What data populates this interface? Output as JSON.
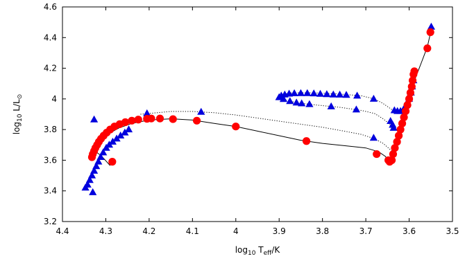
{
  "chart_data": {
    "type": "scatter",
    "xlabel": {
      "prefix": "log",
      "sub1": "10",
      "mid": " T",
      "sub2": "eff",
      "suffix": "/K"
    },
    "ylabel": {
      "prefix": "log",
      "sub1": "10",
      "mid": " L/L",
      "sub2": "⊙",
      "suffix": ""
    },
    "xlim": [
      4.4,
      3.5
    ],
    "ylim": [
      3.2,
      4.6
    ],
    "xticks": [
      4.4,
      4.3,
      4.2,
      4.1,
      4,
      3.9,
      3.8,
      3.7,
      3.6,
      3.5
    ],
    "xtick_labels": [
      "4.4",
      "4.3",
      "4.2",
      "4.1",
      "4",
      "3.9",
      "3.8",
      "3.7",
      "3.6",
      "3.5"
    ],
    "yticks": [
      3.2,
      3.4,
      3.6,
      3.8,
      4.0,
      4.2,
      4.4,
      4.6
    ],
    "ytick_labels": [
      "3.2",
      "3.4",
      "3.6",
      "3.8",
      "4",
      "4.2",
      "4.4",
      "4.6"
    ],
    "colors": {
      "red": "#ff0000",
      "blue": "#0000dd",
      "line": "#000000"
    },
    "series": [
      {
        "marker": "circle",
        "color": "#ff0000",
        "points": [
          [
            4.285,
            3.59
          ],
          [
            4.332,
            3.62
          ],
          [
            4.33,
            3.64
          ],
          [
            4.327,
            3.66
          ],
          [
            4.324,
            3.68
          ],
          [
            4.32,
            3.7
          ],
          [
            4.316,
            3.72
          ],
          [
            4.311,
            3.74
          ],
          [
            4.305,
            3.76
          ],
          [
            4.298,
            3.78
          ],
          [
            4.29,
            3.8
          ],
          [
            4.28,
            3.82
          ],
          [
            4.268,
            3.835
          ],
          [
            4.255,
            3.848
          ],
          [
            4.24,
            3.858
          ],
          [
            4.225,
            3.865
          ],
          [
            4.205,
            3.87
          ],
          [
            4.195,
            3.872
          ],
          [
            4.175,
            3.872
          ],
          [
            4.145,
            3.868
          ],
          [
            4.09,
            3.858
          ],
          [
            4.0,
            3.82
          ],
          [
            3.837,
            3.725
          ],
          [
            3.675,
            3.64
          ],
          [
            3.648,
            3.6
          ],
          [
            3.645,
            3.59
          ],
          [
            3.64,
            3.6
          ],
          [
            3.637,
            3.64
          ],
          [
            3.633,
            3.68
          ],
          [
            3.628,
            3.72
          ],
          [
            3.624,
            3.76
          ],
          [
            3.62,
            3.8
          ],
          [
            3.616,
            3.84
          ],
          [
            3.612,
            3.88
          ],
          [
            3.608,
            3.92
          ],
          [
            3.604,
            3.96
          ],
          [
            3.6,
            4.0
          ],
          [
            3.597,
            4.04
          ],
          [
            3.594,
            4.08
          ],
          [
            3.592,
            4.12
          ],
          [
            3.59,
            4.16
          ],
          [
            3.588,
            4.18
          ],
          [
            3.558,
            4.33
          ],
          [
            3.551,
            4.435
          ]
        ]
      },
      {
        "marker": "triangle",
        "color": "#0000dd",
        "points": [
          [
            4.347,
            3.42
          ],
          [
            4.342,
            3.44
          ],
          [
            4.337,
            3.47
          ],
          [
            4.332,
            3.5
          ],
          [
            4.327,
            3.53
          ],
          [
            4.322,
            3.56
          ],
          [
            4.317,
            3.59
          ],
          [
            4.312,
            3.62
          ],
          [
            4.306,
            3.65
          ],
          [
            4.299,
            3.68
          ],
          [
            4.292,
            3.7
          ],
          [
            4.284,
            3.72
          ],
          [
            4.275,
            3.74
          ],
          [
            4.266,
            3.76
          ],
          [
            4.256,
            3.78
          ],
          [
            4.247,
            3.8
          ],
          [
            4.33,
            3.39
          ],
          [
            4.327,
            3.865
          ],
          [
            4.205,
            3.905
          ],
          [
            4.08,
            3.915
          ],
          [
            3.9,
            4.01
          ],
          [
            3.895,
            4.02
          ],
          [
            3.887,
            4.028
          ],
          [
            3.877,
            4.033
          ],
          [
            3.865,
            4.036
          ],
          [
            3.85,
            4.037
          ],
          [
            3.835,
            4.037
          ],
          [
            3.82,
            4.035
          ],
          [
            3.805,
            4.032
          ],
          [
            3.79,
            4.03
          ],
          [
            3.775,
            4.028
          ],
          [
            3.76,
            4.027
          ],
          [
            3.745,
            4.025
          ],
          [
            3.72,
            4.02
          ],
          [
            3.682,
            4.0
          ],
          [
            3.89,
            3.998
          ],
          [
            3.875,
            3.985
          ],
          [
            3.86,
            3.975
          ],
          [
            3.848,
            3.97
          ],
          [
            3.83,
            3.965
          ],
          [
            3.78,
            3.95
          ],
          [
            3.722,
            3.93
          ],
          [
            3.682,
            3.745
          ],
          [
            3.643,
            3.855
          ],
          [
            3.638,
            3.83
          ],
          [
            3.636,
            3.81
          ],
          [
            3.634,
            3.925
          ],
          [
            3.627,
            3.92
          ],
          [
            3.62,
            3.92
          ],
          [
            3.612,
            3.935
          ],
          [
            3.608,
            3.955
          ],
          [
            3.604,
            3.975
          ],
          [
            3.6,
            4.0
          ],
          [
            3.596,
            4.04
          ],
          [
            3.593,
            4.08
          ],
          [
            3.59,
            4.12
          ],
          [
            3.551,
            4.45
          ],
          [
            3.549,
            4.47
          ]
        ]
      }
    ],
    "tracks": [
      {
        "style": "solid",
        "color": "#000000",
        "points": [
          [
            4.29,
            3.565
          ],
          [
            4.298,
            3.59
          ],
          [
            4.305,
            3.612
          ],
          [
            4.31,
            3.628
          ],
          [
            4.318,
            3.645
          ],
          [
            4.325,
            3.66
          ],
          [
            4.33,
            3.672
          ],
          [
            4.33,
            3.685
          ],
          [
            4.326,
            3.7
          ],
          [
            4.318,
            3.718
          ],
          [
            4.306,
            3.745
          ],
          [
            4.29,
            3.778
          ],
          [
            4.27,
            3.81
          ],
          [
            4.24,
            3.84
          ],
          [
            4.2,
            3.862
          ],
          [
            4.15,
            3.87
          ],
          [
            4.1,
            3.862
          ],
          [
            4.05,
            3.84
          ],
          [
            4.0,
            3.82
          ],
          [
            3.95,
            3.79
          ],
          [
            3.9,
            3.76
          ],
          [
            3.85,
            3.73
          ],
          [
            3.8,
            3.71
          ],
          [
            3.75,
            3.695
          ],
          [
            3.7,
            3.68
          ],
          [
            3.67,
            3.655
          ],
          [
            3.655,
            3.625
          ],
          [
            3.647,
            3.595
          ],
          [
            3.64,
            3.6
          ],
          [
            3.633,
            3.66
          ],
          [
            3.625,
            3.74
          ],
          [
            3.615,
            3.84
          ],
          [
            3.605,
            3.94
          ],
          [
            3.595,
            4.04
          ],
          [
            3.585,
            4.14
          ],
          [
            3.57,
            4.25
          ],
          [
            3.558,
            4.34
          ],
          [
            3.55,
            4.44
          ]
        ]
      },
      {
        "style": "dotted",
        "color": "#000000",
        "points": [
          [
            4.22,
            3.9
          ],
          [
            4.15,
            3.918
          ],
          [
            4.1,
            3.918
          ],
          [
            4.05,
            3.91
          ],
          [
            4.0,
            3.895
          ],
          [
            3.95,
            3.875
          ],
          [
            3.9,
            3.855
          ],
          [
            3.85,
            3.835
          ],
          [
            3.8,
            3.815
          ],
          [
            3.75,
            3.79
          ],
          [
            3.71,
            3.768
          ],
          [
            3.68,
            3.74
          ],
          [
            3.66,
            3.71
          ],
          [
            3.648,
            3.68
          ],
          [
            3.64,
            3.66
          ]
        ]
      },
      {
        "style": "dotted",
        "color": "#000000",
        "points": [
          [
            3.9,
            4.025
          ],
          [
            3.87,
            4.04
          ],
          [
            3.82,
            4.04
          ],
          [
            3.76,
            4.032
          ],
          [
            3.71,
            4.02
          ],
          [
            3.68,
            4.0
          ],
          [
            3.66,
            3.97
          ],
          [
            3.645,
            3.94
          ],
          [
            3.635,
            3.92
          ],
          [
            3.625,
            3.92
          ],
          [
            3.615,
            3.93
          ]
        ]
      },
      {
        "style": "dotted",
        "color": "#000000",
        "points": [
          [
            3.895,
            4.0
          ],
          [
            3.86,
            3.975
          ],
          [
            3.82,
            3.962
          ],
          [
            3.76,
            3.945
          ],
          [
            3.71,
            3.925
          ],
          [
            3.68,
            3.905
          ],
          [
            3.66,
            3.87
          ],
          [
            3.647,
            3.84
          ],
          [
            3.64,
            3.82
          ]
        ]
      }
    ]
  }
}
